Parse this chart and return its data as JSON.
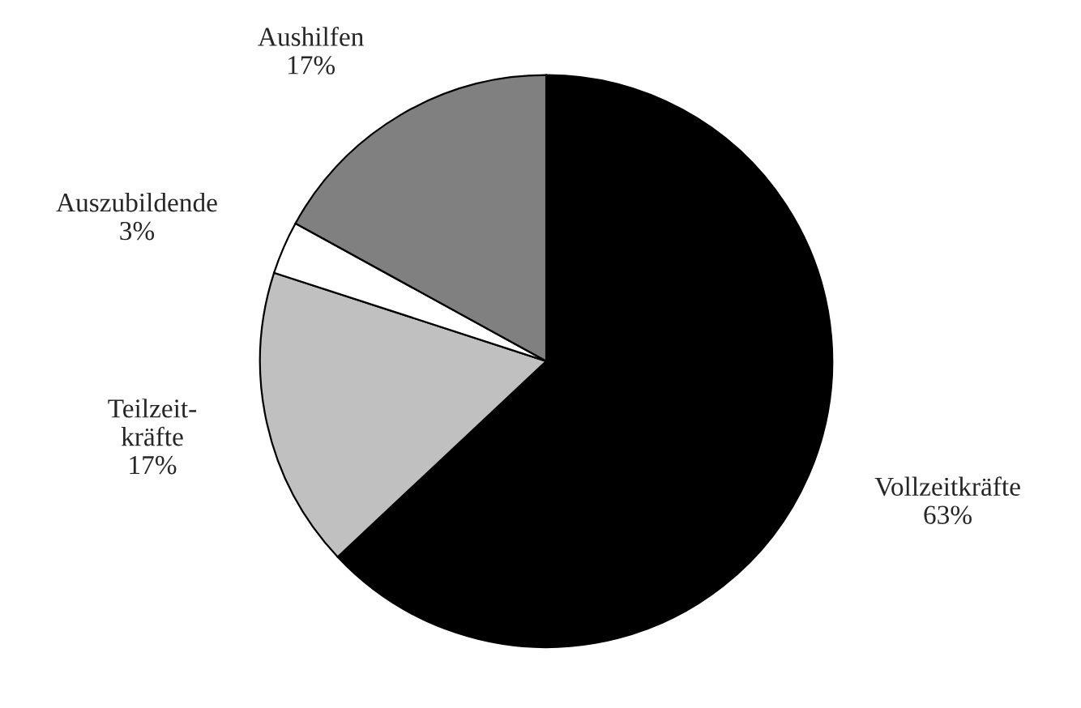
{
  "chart_data": {
    "type": "pie",
    "categories": [
      "Vollzeitkräfte",
      "Teilzeit-\nkräfte",
      "Auszubildende",
      "Aushilfen"
    ],
    "values": [
      63,
      17,
      3,
      17
    ],
    "colors": [
      "#000000",
      "#c0c0c0",
      "#ffffff",
      "#808080"
    ],
    "value_labels": [
      "63%",
      "17%",
      "3%",
      "17%"
    ]
  }
}
